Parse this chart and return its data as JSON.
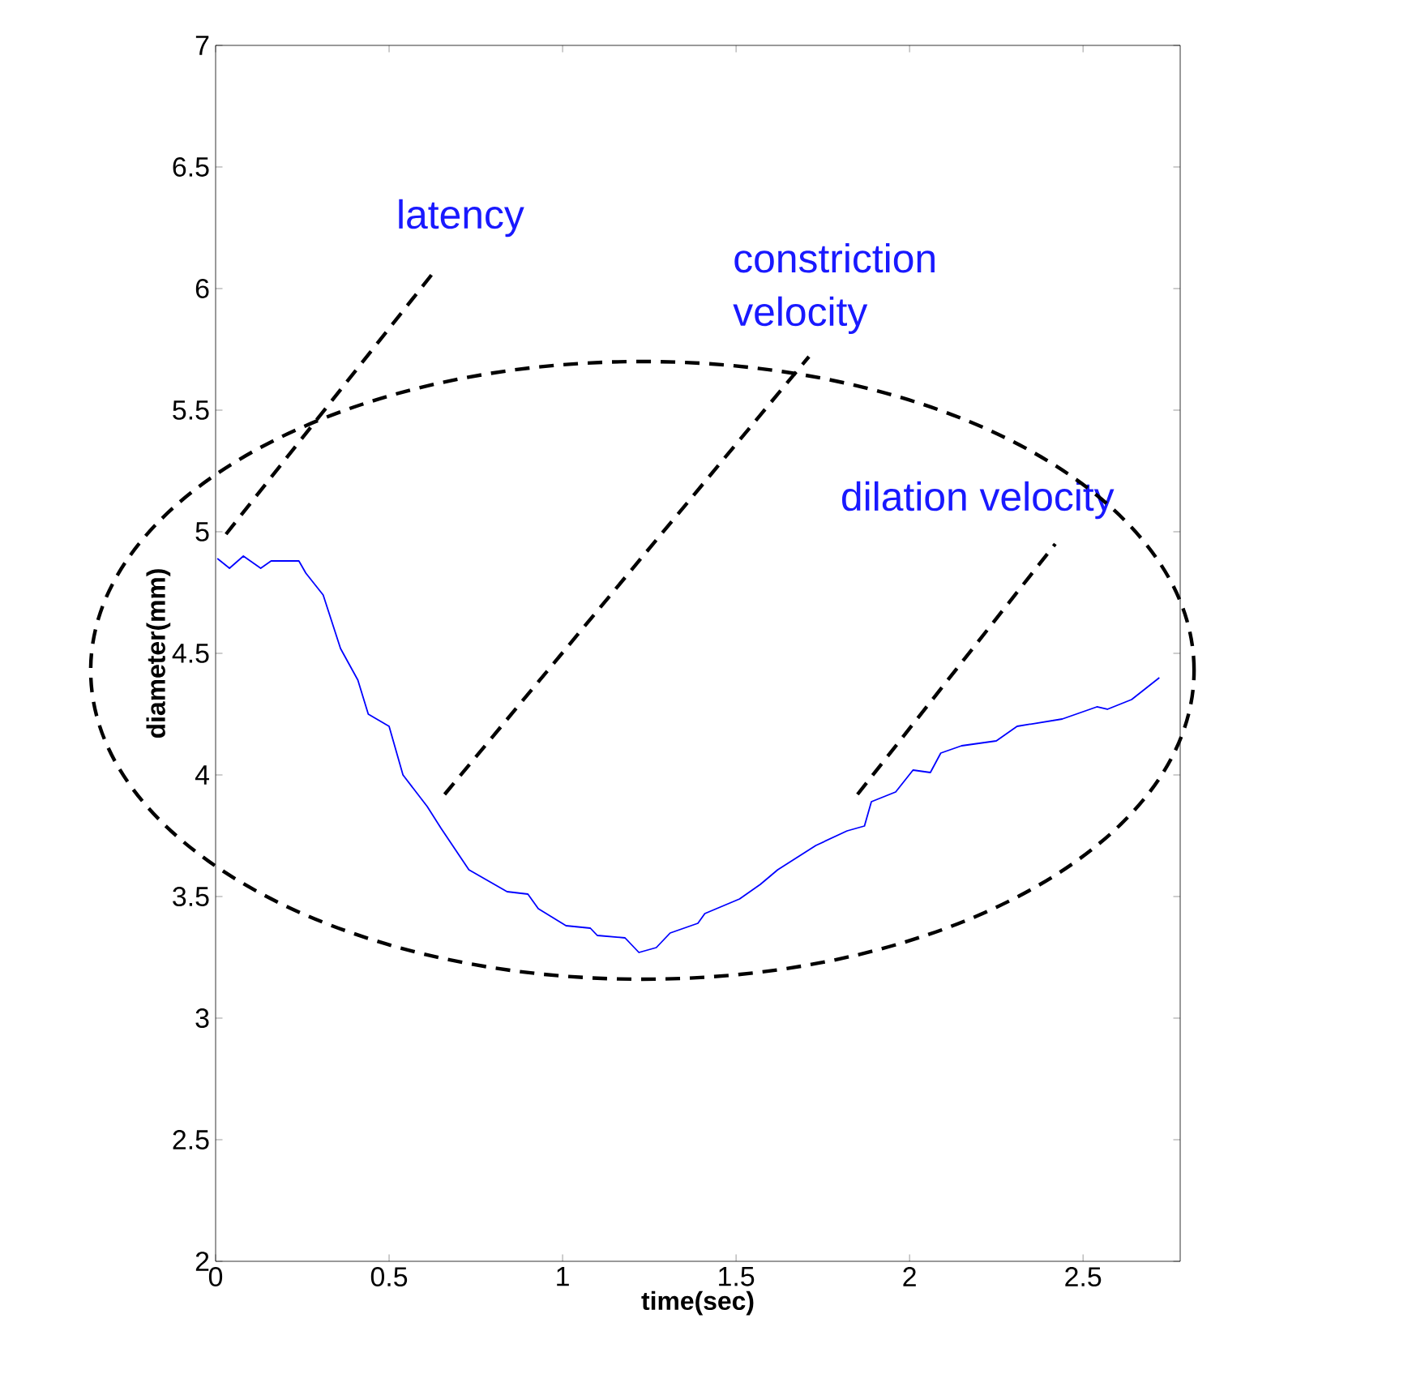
{
  "chart_data": {
    "type": "line",
    "xlabel": "time(sec)",
    "ylabel": "diameter(mm)",
    "xlim": [
      0,
      2.78
    ],
    "ylim": [
      2,
      7
    ],
    "xticks": [
      0,
      0.5,
      1,
      1.5,
      2,
      2.5
    ],
    "yticks": [
      2,
      2.5,
      3,
      3.5,
      4,
      4.5,
      5,
      5.5,
      6,
      6.5,
      7
    ],
    "grid": false,
    "marker": "none",
    "line_style": "solid",
    "annotations": [
      "latency",
      "constriction velocity",
      "dilation velocity"
    ],
    "series": [
      {
        "color": "#0000ff",
        "x": [
          0.005,
          0.04,
          0.08,
          0.13,
          0.16,
          0.24,
          0.26,
          0.31,
          0.36,
          0.41,
          0.44,
          0.5,
          0.54,
          0.61,
          0.65,
          0.73,
          0.84,
          0.9,
          0.93,
          1.01,
          1.08,
          1.1,
          1.18,
          1.22,
          1.27,
          1.31,
          1.39,
          1.41,
          1.51,
          1.57,
          1.62,
          1.73,
          1.82,
          1.87,
          1.89,
          1.96,
          2.01,
          2.06,
          2.09,
          2.15,
          2.25,
          2.31,
          2.44,
          2.54,
          2.57,
          2.64,
          2.72
        ],
        "values": [
          4.89,
          4.85,
          4.9,
          4.85,
          4.88,
          4.88,
          4.83,
          4.74,
          4.52,
          4.39,
          4.25,
          4.2,
          4.0,
          3.87,
          3.78,
          3.61,
          3.52,
          3.51,
          3.45,
          3.38,
          3.37,
          3.34,
          3.33,
          3.27,
          3.29,
          3.35,
          3.39,
          3.43,
          3.49,
          3.55,
          3.61,
          3.71,
          3.77,
          3.79,
          3.89,
          3.93,
          4.02,
          4.01,
          4.09,
          4.12,
          4.14,
          4.2,
          4.23,
          4.28,
          4.27,
          4.31,
          4.4
        ]
      }
    ]
  }
}
